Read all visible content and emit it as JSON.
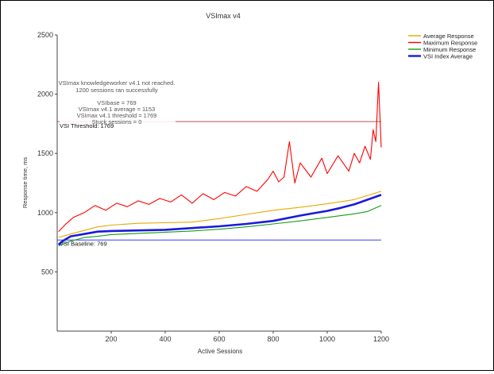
{
  "chart_data": {
    "type": "line",
    "title": "VSImax v4",
    "xlabel": "Active Sessions",
    "ylabel": "Response time, ms",
    "xlim": [
      0,
      1200
    ],
    "ylim": [
      0,
      2500
    ],
    "xticks": [
      200,
      400,
      600,
      800,
      1000,
      1200
    ],
    "yticks": [
      500,
      1000,
      1500,
      2000,
      2500
    ],
    "grid": false,
    "legend_position": "top-right",
    "series": [
      {
        "name": "Average Response",
        "color": "#e8a800",
        "points": [
          [
            5,
            790
          ],
          [
            50,
            820
          ],
          [
            100,
            850
          ],
          [
            150,
            880
          ],
          [
            200,
            895
          ],
          [
            300,
            910
          ],
          [
            400,
            915
          ],
          [
            500,
            920
          ],
          [
            600,
            950
          ],
          [
            700,
            985
          ],
          [
            800,
            1020
          ],
          [
            900,
            1045
          ],
          [
            1000,
            1075
          ],
          [
            1100,
            1110
          ],
          [
            1200,
            1180
          ]
        ]
      },
      {
        "name": "Maximum Response",
        "color": "#ff0000",
        "points": [
          [
            5,
            840
          ],
          [
            30,
            900
          ],
          [
            60,
            960
          ],
          [
            100,
            1000
          ],
          [
            140,
            1060
          ],
          [
            180,
            1020
          ],
          [
            220,
            1080
          ],
          [
            260,
            1050
          ],
          [
            300,
            1100
          ],
          [
            340,
            1070
          ],
          [
            380,
            1120
          ],
          [
            420,
            1090
          ],
          [
            460,
            1150
          ],
          [
            500,
            1080
          ],
          [
            540,
            1160
          ],
          [
            580,
            1110
          ],
          [
            620,
            1170
          ],
          [
            660,
            1140
          ],
          [
            700,
            1220
          ],
          [
            740,
            1180
          ],
          [
            780,
            1280
          ],
          [
            800,
            1350
          ],
          [
            820,
            1260
          ],
          [
            840,
            1300
          ],
          [
            860,
            1600
          ],
          [
            880,
            1250
          ],
          [
            900,
            1420
          ],
          [
            940,
            1300
          ],
          [
            980,
            1460
          ],
          [
            1000,
            1330
          ],
          [
            1040,
            1480
          ],
          [
            1080,
            1350
          ],
          [
            1100,
            1500
          ],
          [
            1120,
            1420
          ],
          [
            1140,
            1560
          ],
          [
            1160,
            1450
          ],
          [
            1170,
            1700
          ],
          [
            1180,
            1600
          ],
          [
            1190,
            2100
          ],
          [
            1200,
            1550
          ]
        ]
      },
      {
        "name": "Minimum Response",
        "color": "#169c16",
        "points": [
          [
            5,
            720
          ],
          [
            50,
            760
          ],
          [
            100,
            790
          ],
          [
            150,
            800
          ],
          [
            200,
            815
          ],
          [
            300,
            825
          ],
          [
            400,
            835
          ],
          [
            500,
            845
          ],
          [
            600,
            860
          ],
          [
            700,
            880
          ],
          [
            800,
            905
          ],
          [
            900,
            930
          ],
          [
            1000,
            960
          ],
          [
            1100,
            990
          ],
          [
            1150,
            1010
          ],
          [
            1200,
            1060
          ]
        ]
      },
      {
        "name": "VSI Index Average",
        "color": "#1a1adb",
        "points": [
          [
            5,
            730
          ],
          [
            20,
            760
          ],
          [
            50,
            800
          ],
          [
            100,
            820
          ],
          [
            150,
            840
          ],
          [
            200,
            845
          ],
          [
            300,
            850
          ],
          [
            400,
            855
          ],
          [
            500,
            870
          ],
          [
            600,
            885
          ],
          [
            700,
            905
          ],
          [
            800,
            930
          ],
          [
            900,
            975
          ],
          [
            950,
            995
          ],
          [
            1000,
            1015
          ],
          [
            1050,
            1040
          ],
          [
            1100,
            1070
          ],
          [
            1150,
            1110
          ],
          [
            1200,
            1150
          ]
        ]
      }
    ],
    "reference_lines": [
      {
        "label": "VSI Threshold: 1769",
        "value": 1769,
        "color": "#c85050"
      },
      {
        "label": "VSI Baseline: 769",
        "value": 769,
        "color": "#3a3aff"
      }
    ],
    "annotations": [
      "VSImax knowledgeworker v4.1 not reached.",
      "1200 sessions ran successfully",
      "VSIbase = 769",
      "VSImax v4.1 average = 1153",
      "VSImax v4.1 threshold = 1769",
      "Stuck sessions = 0"
    ]
  }
}
